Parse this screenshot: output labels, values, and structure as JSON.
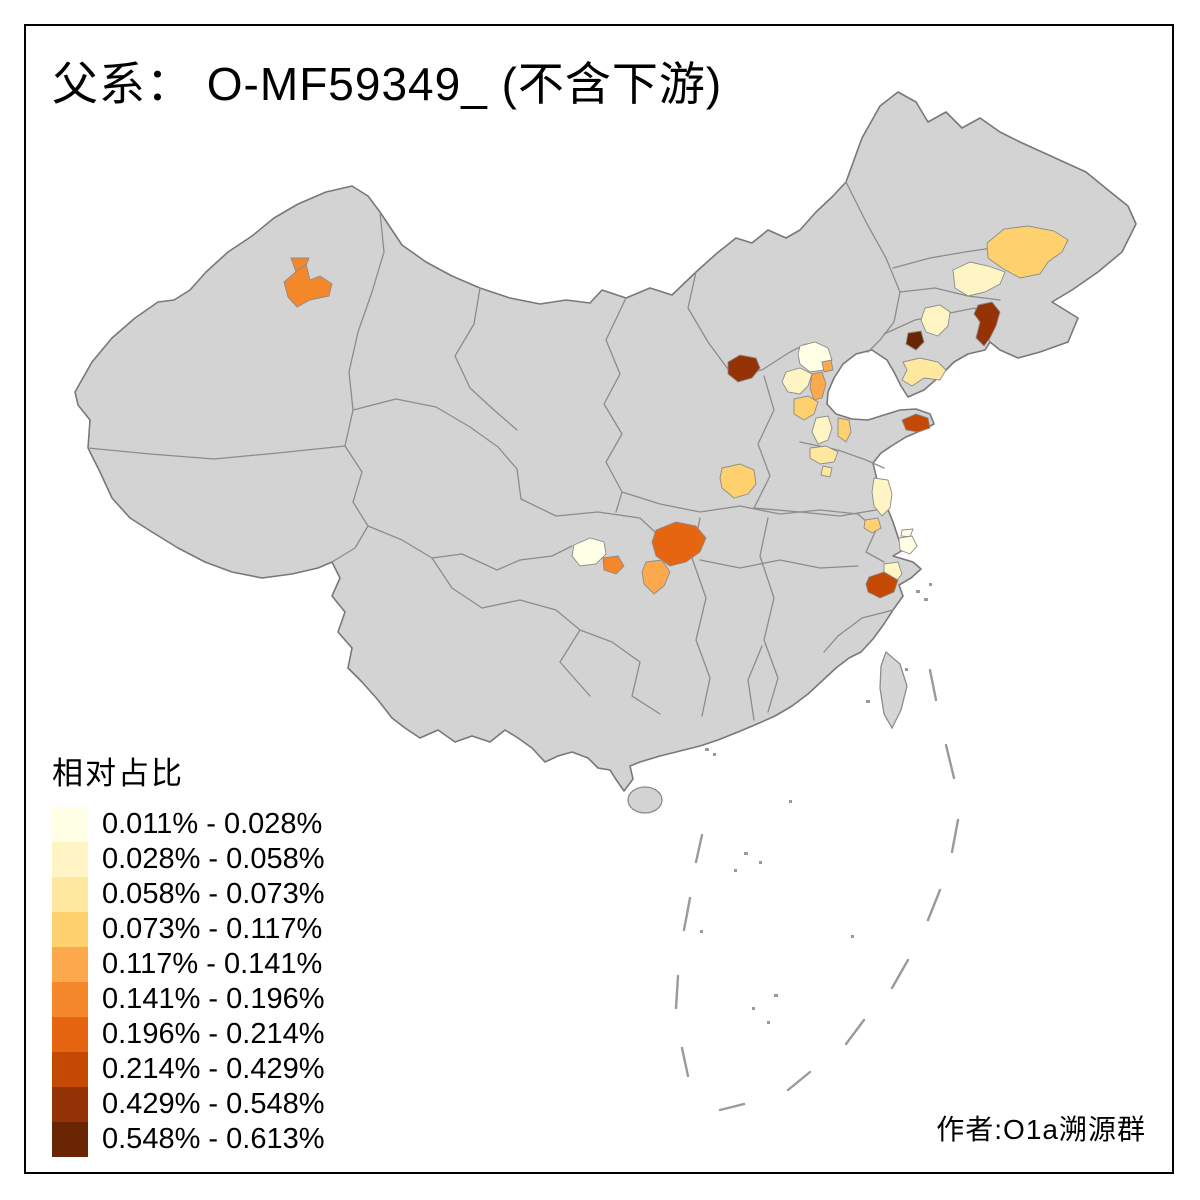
{
  "title": "父系： O-MF59349_ (不含下游)",
  "credit": "作者:O1a溯源群",
  "legend": {
    "title": "相对占比",
    "items": [
      {
        "label": "0.011% - 0.028%",
        "color": "#FFFFE5"
      },
      {
        "label": "0.028% - 0.058%",
        "color": "#FFF5C4"
      },
      {
        "label": "0.058% - 0.073%",
        "color": "#FEE79F"
      },
      {
        "label": "0.073% - 0.117%",
        "color": "#FED06E"
      },
      {
        "label": "0.117% - 0.141%",
        "color": "#FCA94D"
      },
      {
        "label": "0.141% - 0.196%",
        "color": "#F4872A"
      },
      {
        "label": "0.196% - 0.214%",
        "color": "#E66511"
      },
      {
        "label": "0.214% - 0.429%",
        "color": "#C44903"
      },
      {
        "label": "0.429% - 0.548%",
        "color": "#963306"
      },
      {
        "label": "0.548% - 0.613%",
        "color": "#6A2505"
      }
    ]
  },
  "map": {
    "land_color": "#D3D3D3",
    "island_color": "#D6D6D6",
    "border_color": "#8C8C8C",
    "outline_color": "#787878",
    "sea_color": "#FFFFFF"
  },
  "chart_data": {
    "type": "choropleth_map",
    "title": "父系： O-MF59349_ (不含下游)",
    "value_label": "相对占比",
    "region_scope": "China, prefecture-level shading",
    "bins": [
      "0.011% - 0.028%",
      "0.028% - 0.058%",
      "0.058% - 0.073%",
      "0.073% - 0.117%",
      "0.117% - 0.141%",
      "0.141% - 0.196%",
      "0.196% - 0.214%",
      "0.214% - 0.429%",
      "0.429% - 0.548%",
      "0.548% - 0.613%"
    ],
    "regions": [
      {
        "id": "urumqi",
        "area": "Ürümqi area, Xinjiang",
        "bin": 6
      },
      {
        "id": "harbin",
        "area": "Harbin area, Heilongjiang",
        "bin": 4
      },
      {
        "id": "changchun",
        "area": "Changchun area, Jilin",
        "bin": 2
      },
      {
        "id": "shenyang",
        "area": "Shenyang area, Liaoning",
        "bin": 2
      },
      {
        "id": "dandong",
        "area": "Eastern Liaoning (Dandong area)",
        "bin": 9
      },
      {
        "id": "panjin",
        "area": "Panjin area, Liaoning",
        "bin": 10
      },
      {
        "id": "dalian",
        "area": "Dalian area, Liaoning",
        "bin": 3
      },
      {
        "id": "hohhot",
        "area": "Hohhot area, Inner Mongolia",
        "bin": 9
      },
      {
        "id": "zhangjiakou",
        "area": "Zhangjiakou area, Hebei",
        "bin": 2
      },
      {
        "id": "beijing",
        "area": "Beijing",
        "bin": 1
      },
      {
        "id": "langfang_patch",
        "area": "Small area NE of Beijing",
        "bin": 5
      },
      {
        "id": "tianjin",
        "area": "Tianjin",
        "bin": 5
      },
      {
        "id": "baoding",
        "area": "Baoding area, Hebei",
        "bin": 4
      },
      {
        "id": "hengshui",
        "area": "Central Hebei (Hengshui area)",
        "bin": 2
      },
      {
        "id": "cangzhou",
        "area": "Cangzhou strip, Hebei",
        "bin": 4
      },
      {
        "id": "dezhou",
        "area": "NW Shandong (Dezhou area)",
        "bin": 3
      },
      {
        "id": "jinan_patch",
        "area": "Small patch, NW Shandong",
        "bin": 3
      },
      {
        "id": "changzhi",
        "area": "SE Shanxi (Changzhi area)",
        "bin": 4
      },
      {
        "id": "weihai",
        "area": "Shandong peninsula tip (Weihai area)",
        "bin": 8
      },
      {
        "id": "yancheng",
        "area": "Coastal Jiangsu (Yancheng area)",
        "bin": 2
      },
      {
        "id": "yangzhou",
        "area": "Central Jiangsu (Yangzhou area)",
        "bin": 4
      },
      {
        "id": "suzhou",
        "area": "Southern Jiangsu (Suzhou area)",
        "bin": 1
      },
      {
        "id": "jiaxing",
        "area": "Northern Zhejiang (Huzhou–Jiaxing area)",
        "bin": 2
      },
      {
        "id": "hangzhou",
        "area": "Hangzhou area, Zhejiang",
        "bin": 8
      },
      {
        "id": "chengdu",
        "area": "Chengdu area, Sichuan",
        "bin": 1
      },
      {
        "id": "ziyang",
        "area": "SE of Chengdu (Ziyang area), Sichuan",
        "bin": 6
      },
      {
        "id": "chongqing",
        "area": "Chongqing (main/NE)",
        "bin": 7
      },
      {
        "id": "luzhou",
        "area": "South of Chongqing (Luzhou area)",
        "bin": 5
      }
    ]
  }
}
